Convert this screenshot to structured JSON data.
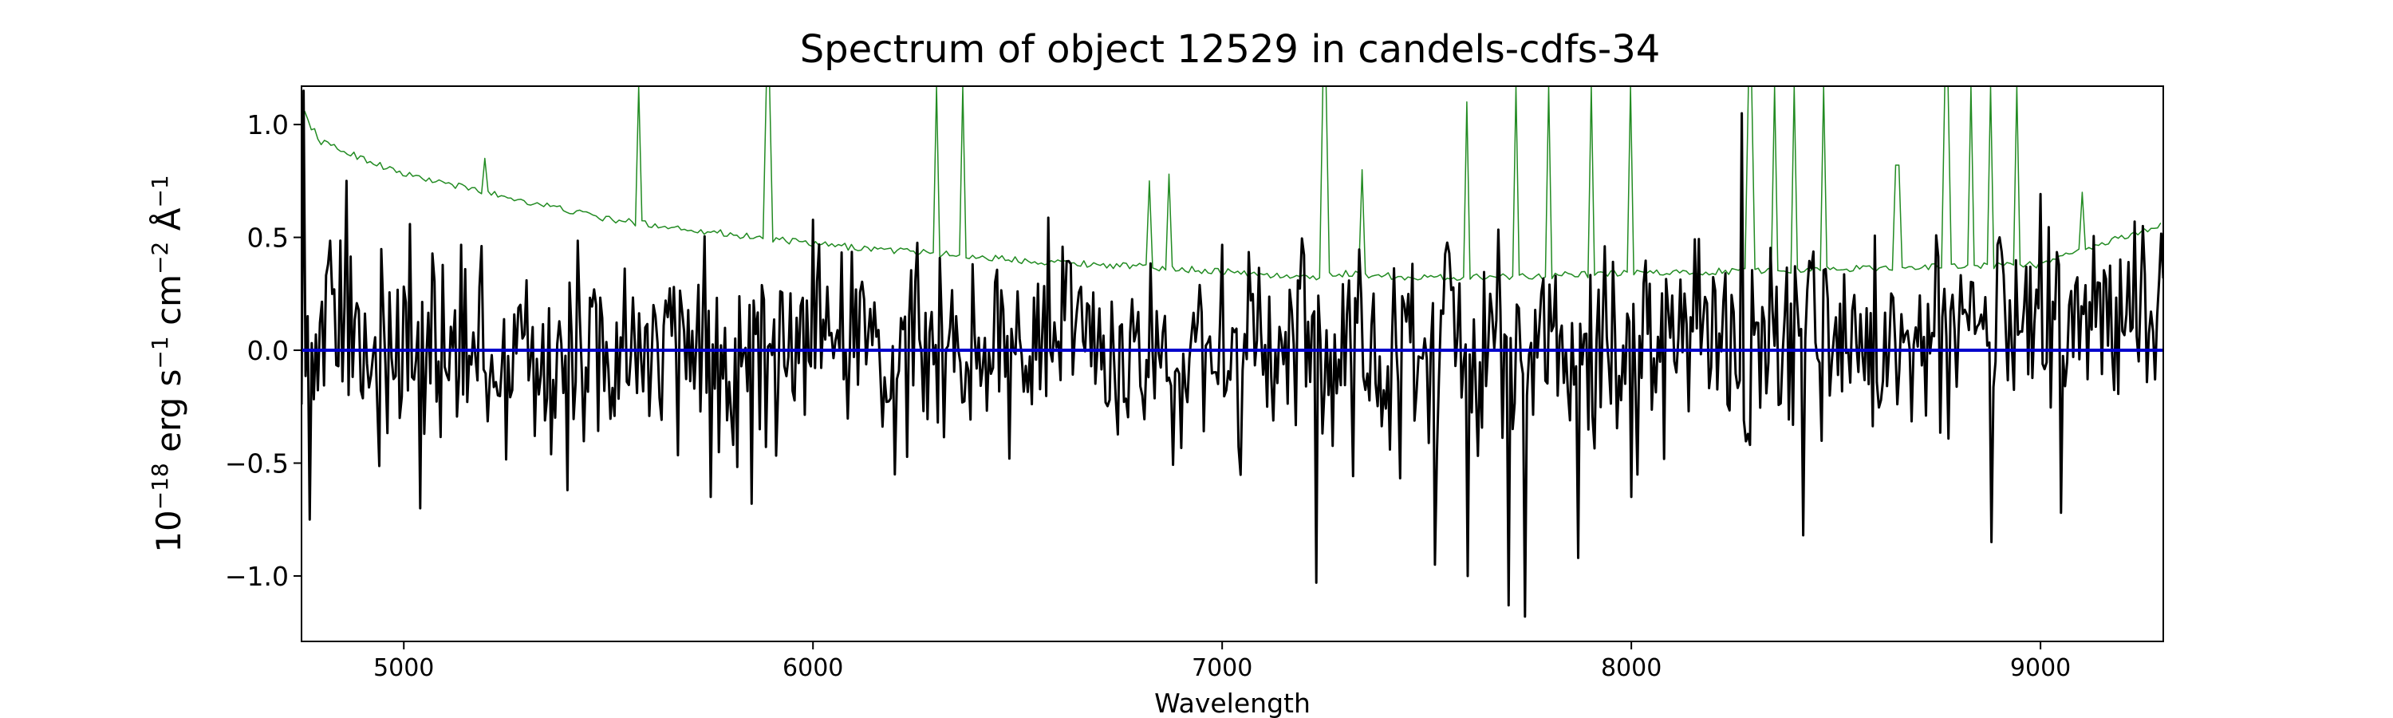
{
  "chart_data": {
    "type": "line",
    "title": "Spectrum of object 12529 in candels-cdfs-34",
    "xlabel": "Wavelength",
    "ylabel": {
      "base": "10",
      "exp1": "−18",
      "mid1": " erg s",
      "exp2": "−1",
      "mid2": " cm",
      "exp3": "−2",
      "mid3": " Å",
      "exp4": "−1"
    },
    "xlim": [
      4750,
      9300
    ],
    "ylim": [
      -1.29,
      1.17
    ],
    "x_ticks": [
      5000,
      6000,
      7000,
      8000,
      9000
    ],
    "y_ticks": [
      {
        "value": 1.0,
        "label": "1.0"
      },
      {
        "value": 0.5,
        "label": "0.5"
      },
      {
        "value": 0.0,
        "label": "0.0"
      },
      {
        "value": -0.5,
        "label": "−0.5"
      },
      {
        "value": -1.0,
        "label": "−1.0"
      }
    ],
    "grid": false,
    "colors": {
      "flux": "#000000",
      "noise": "#228b22",
      "zero": "#0000cc"
    },
    "series": [
      {
        "role": "flux",
        "sampling": "noisy",
        "step": 5,
        "amplitude": 0.25,
        "anchors": [
          [
            4750,
            0.1
          ],
          [
            4800,
            0.1
          ],
          [
            5000,
            0.0
          ],
          [
            5500,
            -0.05
          ],
          [
            6000,
            0.05
          ],
          [
            6500,
            0.05
          ],
          [
            7000,
            -0.05
          ],
          [
            7500,
            0.0
          ],
          [
            8000,
            0.0
          ],
          [
            8500,
            0.05
          ],
          [
            9000,
            0.1
          ],
          [
            9300,
            0.15
          ]
        ],
        "peaks": [
          [
            4755,
            1.15
          ],
          [
            4770,
            -0.75
          ],
          [
            4860,
            0.75
          ],
          [
            5040,
            -0.7
          ],
          [
            5400,
            -0.62
          ],
          [
            5750,
            -0.65
          ],
          [
            5850,
            -0.68
          ],
          [
            6200,
            -0.55
          ],
          [
            6480,
            -0.48
          ],
          [
            7230,
            -1.03
          ],
          [
            7520,
            -0.95
          ],
          [
            7600,
            -1.0
          ],
          [
            7700,
            -1.13
          ],
          [
            7740,
            -1.18
          ],
          [
            7870,
            -0.92
          ],
          [
            8000,
            -0.65
          ],
          [
            8270,
            1.05
          ],
          [
            8420,
            -0.82
          ],
          [
            8880,
            -0.85
          ],
          [
            9050,
            -0.72
          ],
          [
            9250,
            0.55
          ]
        ]
      },
      {
        "role": "noise",
        "sampling": "smooth",
        "step": 8,
        "amplitude": 0.015,
        "anchors": [
          [
            4750,
            1.08
          ],
          [
            4770,
            1.0
          ],
          [
            4800,
            0.92
          ],
          [
            5000,
            0.78
          ],
          [
            5500,
            0.58
          ],
          [
            6000,
            0.47
          ],
          [
            6500,
            0.4
          ],
          [
            7000,
            0.35
          ],
          [
            7200,
            0.32
          ],
          [
            7300,
            0.34
          ],
          [
            7500,
            0.32
          ],
          [
            8000,
            0.34
          ],
          [
            8500,
            0.36
          ],
          [
            9000,
            0.38
          ],
          [
            9300,
            0.56
          ]
        ],
        "spikes": [
          [
            5200,
            0.85
          ],
          [
            5577,
            1.17
          ],
          [
            5890,
            1.17
          ],
          [
            6300,
            1.17
          ],
          [
            6363,
            1.17
          ],
          [
            6820,
            0.75
          ],
          [
            6870,
            0.78
          ],
          [
            7250,
            1.17
          ],
          [
            7340,
            0.8
          ],
          [
            7600,
            1.1
          ],
          [
            7720,
            1.17
          ],
          [
            7800,
            1.17
          ],
          [
            7900,
            1.17
          ],
          [
            8000,
            1.17
          ],
          [
            8290,
            1.17
          ],
          [
            8350,
            1.17
          ],
          [
            8400,
            1.17
          ],
          [
            8470,
            1.17
          ],
          [
            8650,
            0.82
          ],
          [
            8770,
            1.17
          ],
          [
            8830,
            1.17
          ],
          [
            8880,
            1.17
          ],
          [
            8940,
            1.17
          ],
          [
            9100,
            0.7
          ]
        ]
      },
      {
        "role": "zero",
        "sampling": "flat",
        "anchors": [
          [
            4750,
            0.0
          ],
          [
            9300,
            0.0
          ]
        ]
      }
    ]
  }
}
